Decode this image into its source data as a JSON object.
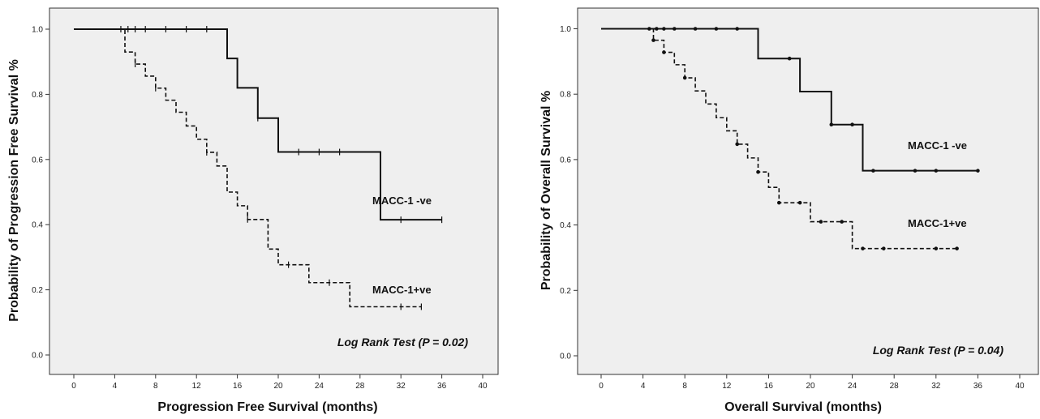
{
  "chart_data": [
    {
      "type": "line",
      "subtype": "kaplan-meier",
      "title": "",
      "xlabel": "Progression Free Survival (months)",
      "ylabel": "Probability of Progression Free Survival %",
      "xlim": [
        0,
        40
      ],
      "ylim": [
        0,
        1.0
      ],
      "xticks": [
        0,
        4,
        8,
        12,
        16,
        20,
        24,
        28,
        32,
        36,
        40
      ],
      "yticks": [
        0.0,
        0.2,
        0.4,
        0.6,
        0.8,
        1.0
      ],
      "ytick_labels": [
        "0.0",
        "0.2",
        "0.4",
        "0.6",
        "0.8",
        "1.0"
      ],
      "grid": false,
      "background": "#efefef",
      "censor_marker": "tick",
      "annotation": "Log Rank Test (P = 0.02)",
      "series": [
        {
          "name": "MACC-1 -ve",
          "style": "solid",
          "color": "#111111",
          "steps": [
            [
              0,
              1.0
            ],
            [
              15,
              0.91
            ],
            [
              16,
              0.82
            ],
            [
              18,
              0.727
            ],
            [
              20,
              0.623
            ],
            [
              30,
              0.415
            ],
            [
              36,
              0.415
            ]
          ],
          "censored": [
            [
              4.6,
              1.0
            ],
            [
              5.3,
              1.0
            ],
            [
              6,
              1.0
            ],
            [
              7,
              1.0
            ],
            [
              9,
              1.0
            ],
            [
              11,
              1.0
            ],
            [
              13,
              1.0
            ],
            [
              18,
              0.727
            ],
            [
              22,
              0.623
            ],
            [
              24,
              0.623
            ],
            [
              26,
              0.623
            ],
            [
              32,
              0.415
            ],
            [
              36,
              0.415
            ]
          ]
        },
        {
          "name": "MACC-1+ve",
          "style": "dashed",
          "color": "#111111",
          "steps": [
            [
              0,
              1.0
            ],
            [
              5,
              0.93
            ],
            [
              6,
              0.893
            ],
            [
              7,
              0.856
            ],
            [
              8,
              0.819
            ],
            [
              9,
              0.782
            ],
            [
              10,
              0.745
            ],
            [
              11,
              0.703
            ],
            [
              12,
              0.662
            ],
            [
              13,
              0.622
            ],
            [
              14,
              0.58
            ],
            [
              15,
              0.5
            ],
            [
              16,
              0.458
            ],
            [
              17,
              0.416
            ],
            [
              19,
              0.325
            ],
            [
              20,
              0.277
            ],
            [
              23,
              0.222
            ],
            [
              27,
              0.148
            ],
            [
              34,
              0.148
            ]
          ],
          "censored": [
            [
              6,
              0.893
            ],
            [
              8,
              0.819
            ],
            [
              13,
              0.622
            ],
            [
              17,
              0.416
            ],
            [
              21,
              0.277
            ],
            [
              25,
              0.222
            ],
            [
              32,
              0.148
            ],
            [
              34,
              0.148
            ]
          ]
        }
      ]
    },
    {
      "type": "line",
      "subtype": "kaplan-meier",
      "title": "",
      "xlabel": "Overall Survival (months)",
      "ylabel": "Probability of Overall Survival %",
      "xlim": [
        0,
        40
      ],
      "ylim": [
        0,
        1.0
      ],
      "xticks": [
        0,
        4,
        8,
        12,
        16,
        20,
        24,
        28,
        32,
        36,
        40
      ],
      "yticks": [
        0.0,
        0.2,
        0.4,
        0.6,
        0.8,
        1.0
      ],
      "ytick_labels": [
        "0.0",
        "0.2",
        "0.4",
        "0.6",
        "0.8",
        "1.0"
      ],
      "grid": false,
      "background": "#efefef",
      "censor_marker": "dot",
      "annotation": "Log Rank Test (P = 0.04)",
      "series": [
        {
          "name": "MACC-1 -ve",
          "style": "solid",
          "color": "#111111",
          "steps": [
            [
              0,
              1.0
            ],
            [
              15,
              0.909
            ],
            [
              19,
              0.808
            ],
            [
              22,
              0.707
            ],
            [
              25,
              0.566
            ],
            [
              36,
              0.566
            ]
          ],
          "censored": [
            [
              4.6,
              1.0
            ],
            [
              5.3,
              1.0
            ],
            [
              6,
              1.0
            ],
            [
              7,
              1.0
            ],
            [
              9,
              1.0
            ],
            [
              11,
              1.0
            ],
            [
              13,
              1.0
            ],
            [
              18,
              0.909
            ],
            [
              22,
              0.707
            ],
            [
              24,
              0.707
            ],
            [
              26,
              0.566
            ],
            [
              30,
              0.566
            ],
            [
              32,
              0.566
            ],
            [
              36,
              0.566
            ]
          ]
        },
        {
          "name": "MACC-1+ve",
          "style": "dashed",
          "color": "#111111",
          "steps": [
            [
              0,
              1.0
            ],
            [
              5,
              0.965
            ],
            [
              6,
              0.928
            ],
            [
              7,
              0.89
            ],
            [
              8,
              0.85
            ],
            [
              9,
              0.81
            ],
            [
              10,
              0.77
            ],
            [
              11,
              0.728
            ],
            [
              12,
              0.688
            ],
            [
              13,
              0.647
            ],
            [
              14,
              0.605
            ],
            [
              15,
              0.562
            ],
            [
              16,
              0.515
            ],
            [
              17,
              0.468
            ],
            [
              20,
              0.41
            ],
            [
              24,
              0.328
            ],
            [
              34,
              0.328
            ]
          ],
          "censored": [
            [
              5,
              0.965
            ],
            [
              6,
              0.928
            ],
            [
              8,
              0.85
            ],
            [
              13,
              0.647
            ],
            [
              15,
              0.562
            ],
            [
              17,
              0.468
            ],
            [
              19,
              0.468
            ],
            [
              21,
              0.41
            ],
            [
              23,
              0.41
            ],
            [
              25,
              0.328
            ],
            [
              27,
              0.328
            ],
            [
              32,
              0.328
            ],
            [
              34,
              0.328
            ]
          ]
        }
      ]
    }
  ]
}
